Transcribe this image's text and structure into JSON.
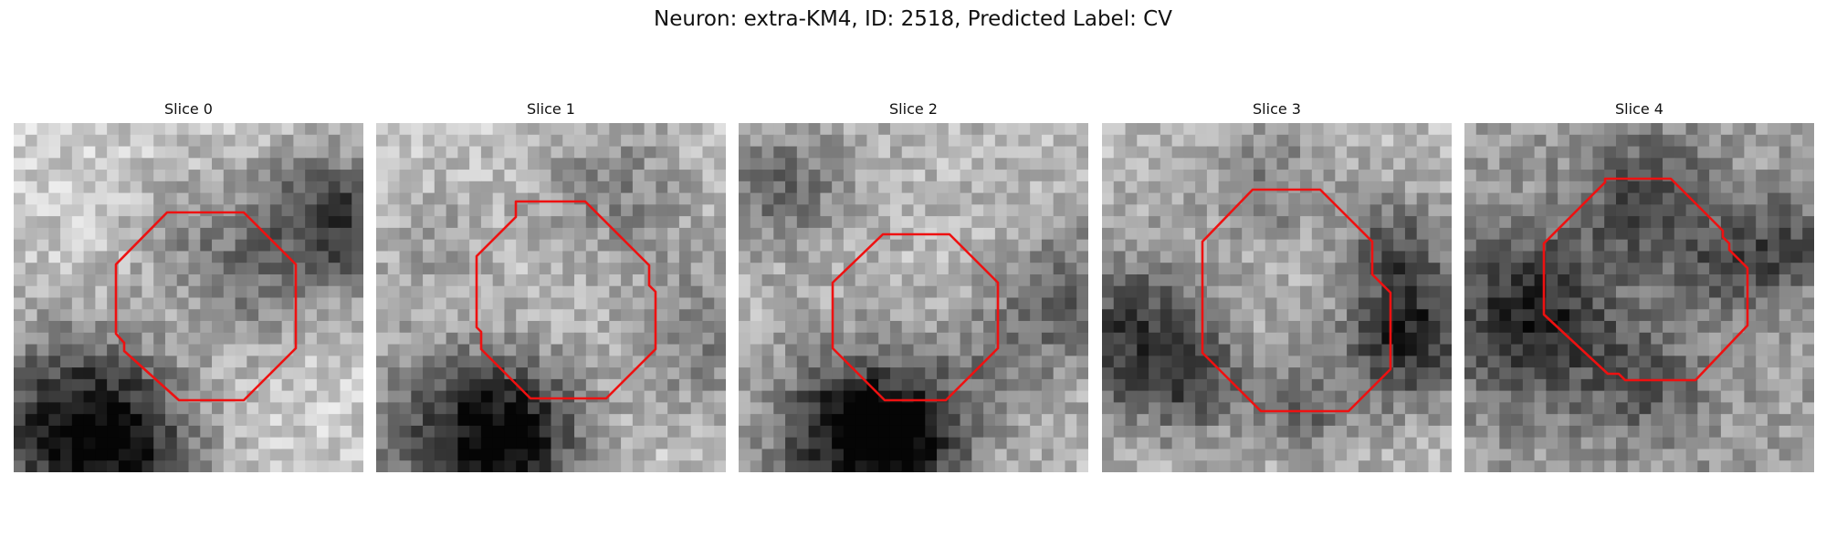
{
  "figure": {
    "title": "Neuron: extra-KM4, ID: 2518, Predicted Label: CV"
  },
  "panels": [
    {
      "label": "Slice 0"
    },
    {
      "label": "Slice 1"
    },
    {
      "label": "Slice 2"
    },
    {
      "label": "Slice 3"
    },
    {
      "label": "Slice 4"
    }
  ],
  "colors": {
    "contour": "#ee1111",
    "background": "#ffffff"
  }
}
